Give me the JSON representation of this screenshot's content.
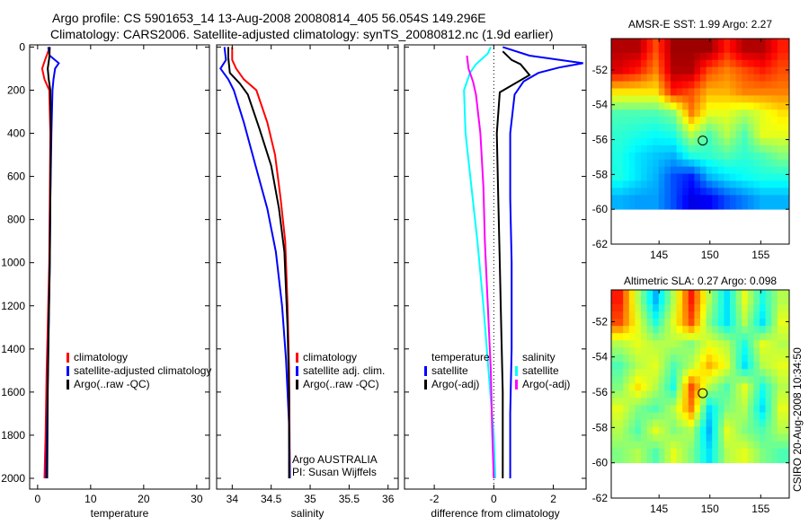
{
  "title": {
    "line1": "Argo profile: CS 5901653_14 13-Aug-2008 20080814_405 56.054S 149.296E",
    "line2": "Climatology: CARS2006. Satellite-adjusted climatology: synTS_20080812.nc (1.9d earlier)"
  },
  "credit": "CSIRO 20-Aug-2008 10:34:50",
  "colors": {
    "red": "#ff0000",
    "blue": "#0000ff",
    "black": "#000000",
    "cyan": "#00ffff",
    "magenta": "#ff00ff"
  },
  "chart_data": [
    {
      "type": "line",
      "name": "temperature",
      "xlabel": "temperature",
      "ylabel": "",
      "xlim": [
        -1.5,
        32.4
      ],
      "ylim": [
        2050,
        -10
      ],
      "xticks": [
        0,
        10,
        20,
        30
      ],
      "yticks": [
        0,
        200,
        400,
        600,
        800,
        1000,
        1200,
        1400,
        1600,
        1800,
        2000
      ],
      "legend": [
        "climatology",
        "satellite-adjusted climatology",
        "Argo(..raw -QC)"
      ],
      "legend_colors": [
        "red",
        "blue",
        "black"
      ],
      "series": [
        {
          "name": "climatology",
          "color": "red",
          "points": [
            [
              2.3,
              0
            ],
            [
              1.4,
              60
            ],
            [
              0.85,
              100
            ],
            [
              1.3,
              150
            ],
            [
              2.2,
              200
            ],
            [
              2.4,
              400
            ],
            [
              2.3,
              700
            ],
            [
              2.2,
              1000
            ],
            [
              1.9,
              1300
            ],
            [
              1.7,
              1500
            ],
            [
              1.5,
              1800
            ],
            [
              1.3,
              2000
            ]
          ]
        },
        {
          "name": "satellite-adjusted climatology",
          "color": "blue",
          "points": [
            [
              2.0,
              0
            ],
            [
              2.3,
              40
            ],
            [
              4.0,
              75
            ],
            [
              3.3,
              100
            ],
            [
              3.0,
              150
            ],
            [
              2.8,
              200
            ],
            [
              2.6,
              400
            ],
            [
              2.4,
              700
            ],
            [
              2.3,
              1000
            ],
            [
              2.0,
              1400
            ],
            [
              1.8,
              1700
            ],
            [
              1.6,
              2000
            ]
          ]
        },
        {
          "name": "Argo(..raw -QC)",
          "color": "black",
          "points": [
            [
              2.3,
              0
            ],
            [
              2.2,
              50
            ],
            [
              1.9,
              100
            ],
            [
              2.1,
              150
            ],
            [
              2.4,
              200
            ],
            [
              2.5,
              400
            ],
            [
              2.4,
              700
            ],
            [
              2.3,
              1000
            ],
            [
              2.1,
              1300
            ],
            [
              1.9,
              1600
            ],
            [
              1.8,
              2000
            ]
          ]
        }
      ]
    },
    {
      "type": "line",
      "name": "salinity",
      "xlabel": "salinity",
      "xlim": [
        33.8,
        36.13
      ],
      "ylim": [
        2050,
        -10
      ],
      "xticks": [
        34,
        34.5,
        35,
        35.5,
        36
      ],
      "xtick_labels": [
        "34",
        "34.5",
        "35",
        "35.5",
        "36"
      ],
      "legend": [
        "climatology",
        "satellite adj. clim.",
        "Argo(..raw -QC)"
      ],
      "legend_colors": [
        "red",
        "blue",
        "black"
      ],
      "annotation": [
        "Argo AUSTRALIA",
        "PI: Susan Wijffels"
      ],
      "series": [
        {
          "name": "climatology",
          "color": "red",
          "points": [
            [
              34.0,
              0
            ],
            [
              34.0,
              60
            ],
            [
              34.05,
              100
            ],
            [
              34.15,
              150
            ],
            [
              34.31,
              200
            ],
            [
              34.45,
              350
            ],
            [
              34.55,
              500
            ],
            [
              34.62,
              700
            ],
            [
              34.68,
              900
            ],
            [
              34.71,
              1200
            ],
            [
              34.73,
              1500
            ],
            [
              34.74,
              2000
            ]
          ]
        },
        {
          "name": "satellite adj. clim.",
          "color": "blue",
          "points": [
            [
              33.9,
              0
            ],
            [
              33.92,
              60
            ],
            [
              33.85,
              100
            ],
            [
              33.95,
              150
            ],
            [
              34.02,
              200
            ],
            [
              34.15,
              350
            ],
            [
              34.3,
              550
            ],
            [
              34.45,
              750
            ],
            [
              34.56,
              950
            ],
            [
              34.64,
              1200
            ],
            [
              34.69,
              1450
            ],
            [
              34.73,
              1750
            ],
            [
              34.74,
              2000
            ]
          ]
        },
        {
          "name": "Argo(..raw -QC)",
          "color": "black",
          "points": [
            [
              33.95,
              0
            ],
            [
              33.95,
              50
            ],
            [
              33.97,
              120
            ],
            [
              34.1,
              170
            ],
            [
              34.2,
              220
            ],
            [
              34.35,
              380
            ],
            [
              34.5,
              550
            ],
            [
              34.6,
              750
            ],
            [
              34.67,
              950
            ],
            [
              34.71,
              1300
            ],
            [
              34.73,
              1600
            ],
            [
              34.73,
              2000
            ]
          ]
        }
      ]
    },
    {
      "type": "line",
      "name": "difference",
      "xlabel": "difference from climatology",
      "xlim": [
        -3.0,
        3.1
      ],
      "ylim": [
        2050,
        -10
      ],
      "xticks": [
        -2,
        0,
        2
      ],
      "legend_temperature_title": "temperature",
      "legend_salinity_title": "salinity",
      "legend": [
        "satellite",
        "Argo(-adj)",
        "satellite",
        "Argo(-adj)"
      ],
      "legend_colors": [
        "blue",
        "black",
        "cyan",
        "magenta"
      ],
      "series": [
        {
          "name": "temperature satellite",
          "color": "blue",
          "points": [
            [
              0.3,
              0
            ],
            [
              1.2,
              40
            ],
            [
              3.0,
              75
            ],
            [
              2.2,
              95
            ],
            [
              1.5,
              120
            ],
            [
              1.0,
              160
            ],
            [
              0.7,
              220
            ],
            [
              0.55,
              400
            ],
            [
              0.55,
              700
            ],
            [
              0.6,
              1000
            ],
            [
              0.6,
              1400
            ],
            [
              0.55,
              1700
            ],
            [
              0.55,
              2000
            ]
          ]
        },
        {
          "name": "temperature Argo(-adj)",
          "color": "black",
          "points": [
            [
              0.3,
              20
            ],
            [
              0.6,
              60
            ],
            [
              0.9,
              80
            ],
            [
              1.2,
              130
            ],
            [
              0.7,
              170
            ],
            [
              0.2,
              210
            ],
            [
              0.1,
              400
            ],
            [
              0.15,
              700
            ],
            [
              0.2,
              1000
            ],
            [
              0.25,
              1300
            ],
            [
              0.3,
              1600
            ],
            [
              0.3,
              2000
            ]
          ]
        },
        {
          "name": "salinity satellite",
          "color": "cyan",
          "points": [
            [
              -0.1,
              0
            ],
            [
              -0.2,
              30
            ],
            [
              -0.6,
              80
            ],
            [
              -0.8,
              120
            ],
            [
              -1.0,
              200
            ],
            [
              -0.95,
              400
            ],
            [
              -0.75,
              650
            ],
            [
              -0.55,
              900
            ],
            [
              -0.35,
              1200
            ],
            [
              -0.15,
              1550
            ],
            [
              0.0,
              1800
            ],
            [
              0.05,
              2000
            ]
          ]
        },
        {
          "name": "salinity Argo(-adj)",
          "color": "magenta",
          "points": [
            [
              -0.9,
              40
            ],
            [
              -0.85,
              100
            ],
            [
              -0.7,
              160
            ],
            [
              -0.6,
              220
            ],
            [
              -0.45,
              400
            ],
            [
              -0.35,
              650
            ],
            [
              -0.3,
              900
            ],
            [
              -0.2,
              1200
            ],
            [
              -0.1,
              1500
            ],
            [
              -0.05,
              1800
            ],
            [
              0.0,
              2000
            ]
          ]
        }
      ]
    },
    {
      "type": "heatmap",
      "name": "sst-map",
      "title": "AMSR-E SST: 1.99 Argo: 2.27",
      "xlim": [
        140.3,
        157.8
      ],
      "ylim": [
        -62.0,
        -50.2
      ],
      "xticks": [
        145,
        150,
        155
      ],
      "yticks": [
        -52,
        -54,
        -56,
        -58,
        -60,
        -62
      ],
      "data_lat_range": [
        -60.0,
        -50.2
      ],
      "float_position": [
        149.296,
        -56.054
      ],
      "value_scale": "relative 0-1 (jet)",
      "grid": [
        [
          0.95,
          0.95,
          0.8,
          0.97,
          0.97,
          0.97,
          0.85,
          0.95,
          0.95,
          0.85
        ],
        [
          0.9,
          0.85,
          0.75,
          0.95,
          0.95,
          0.8,
          0.75,
          0.8,
          0.85,
          0.8
        ],
        [
          0.65,
          0.65,
          0.65,
          0.85,
          0.8,
          0.7,
          0.7,
          0.75,
          0.75,
          0.75
        ],
        [
          0.45,
          0.45,
          0.45,
          0.5,
          0.75,
          0.6,
          0.6,
          0.55,
          0.6,
          0.65
        ],
        [
          0.42,
          0.4,
          0.38,
          0.4,
          0.55,
          0.45,
          0.55,
          0.45,
          0.6,
          0.6
        ],
        [
          0.4,
          0.35,
          0.32,
          0.3,
          0.4,
          0.42,
          0.45,
          0.42,
          0.45,
          0.5
        ],
        [
          0.4,
          0.35,
          0.3,
          0.2,
          0.15,
          0.3,
          0.35,
          0.38,
          0.4,
          0.4
        ],
        [
          0.3,
          0.28,
          0.28,
          0.2,
          0.1,
          0.12,
          0.2,
          0.25,
          0.3,
          0.3
        ]
      ]
    },
    {
      "type": "heatmap",
      "name": "sla-map",
      "title": "Altimetric SLA: 0.27 Argo: 0.098",
      "xlim": [
        140.3,
        157.8
      ],
      "ylim": [
        -62.0,
        -50.2
      ],
      "xticks": [
        145,
        150,
        155
      ],
      "yticks": [
        -52,
        -54,
        -56,
        -58,
        -60,
        -62
      ],
      "data_lat_range": [
        -60.0,
        -50.2
      ],
      "float_position": [
        149.296,
        -56.054
      ],
      "value_scale": "relative 0-1 (jet)",
      "grid": [
        [
          0.85,
          0.55,
          0.3,
          0.55,
          0.85,
          0.55,
          0.35,
          0.6,
          0.4,
          0.55
        ],
        [
          0.8,
          0.6,
          0.4,
          0.6,
          0.8,
          0.5,
          0.35,
          0.55,
          0.35,
          0.6
        ],
        [
          0.55,
          0.6,
          0.55,
          0.55,
          0.5,
          0.6,
          0.55,
          0.4,
          0.6,
          0.55
        ],
        [
          0.45,
          0.55,
          0.6,
          0.45,
          0.55,
          0.7,
          0.6,
          0.35,
          0.55,
          0.6
        ],
        [
          0.5,
          0.65,
          0.55,
          0.4,
          0.8,
          0.55,
          0.45,
          0.6,
          0.4,
          0.55
        ],
        [
          0.6,
          0.5,
          0.45,
          0.55,
          0.75,
          0.35,
          0.5,
          0.55,
          0.35,
          0.6
        ],
        [
          0.55,
          0.45,
          0.6,
          0.5,
          0.55,
          0.3,
          0.6,
          0.5,
          0.45,
          0.55
        ],
        [
          0.5,
          0.55,
          0.45,
          0.6,
          0.5,
          0.35,
          0.55,
          0.6,
          0.5,
          0.45
        ]
      ]
    }
  ]
}
